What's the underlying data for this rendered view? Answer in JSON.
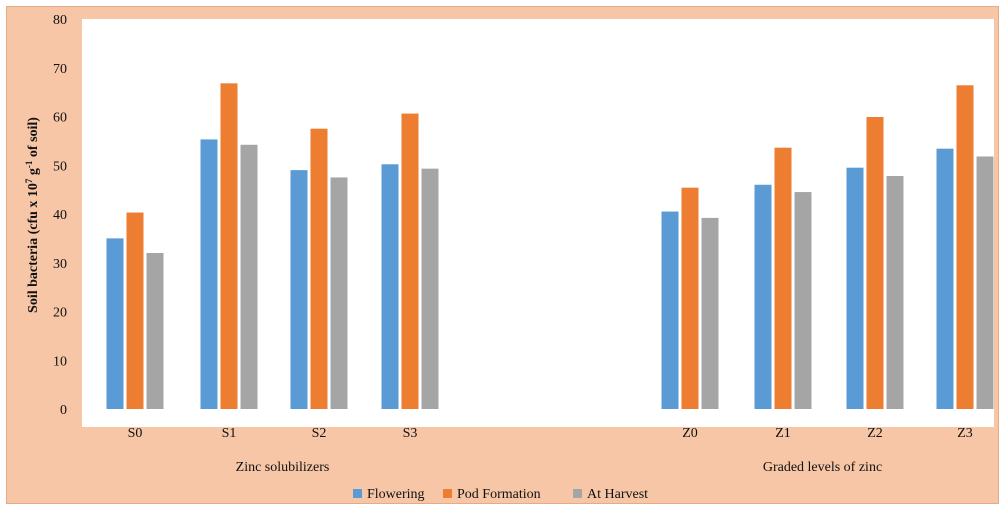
{
  "chart_data": {
    "type": "bar",
    "ylabel": "Soil bacteria (cfu x 10",
    "ylabel_exp": "7",
    "ylabel_mid": " g",
    "ylabel_exp2": "-1",
    "ylabel_end": " of soil)",
    "ylim": [
      0,
      80
    ],
    "yticks": [
      0,
      10,
      20,
      30,
      40,
      50,
      60,
      70,
      80
    ],
    "grid": false,
    "legend_position": "bottom",
    "categories": [
      "S0",
      "S1",
      "S2",
      "S3",
      "Z0",
      "Z1",
      "Z2",
      "Z3"
    ],
    "group_labels": [
      {
        "label": "Zinc solubilizers",
        "categories": [
          "S0",
          "S1",
          "S2",
          "S3"
        ]
      },
      {
        "label": "Graded levels of zinc",
        "categories": [
          "Z0",
          "Z1",
          "Z2",
          "Z3"
        ]
      }
    ],
    "series": [
      {
        "name": "Flowering",
        "color": "#5b9bd5",
        "values": [
          35.0,
          55.3,
          49.0,
          50.2,
          40.5,
          46.0,
          49.5,
          53.4
        ]
      },
      {
        "name": "Pod Formation",
        "color": "#ed7d31",
        "values": [
          40.3,
          66.8,
          57.5,
          60.6,
          45.4,
          53.6,
          59.9,
          66.4
        ]
      },
      {
        "name": "At Harvest",
        "color": "#a5a5a5",
        "values": [
          32.0,
          54.2,
          47.5,
          49.3,
          39.2,
          44.5,
          47.8,
          51.8
        ]
      }
    ]
  },
  "colors": {
    "frame_background": "#f6c6a6",
    "plot_background": "#ffffff"
  }
}
